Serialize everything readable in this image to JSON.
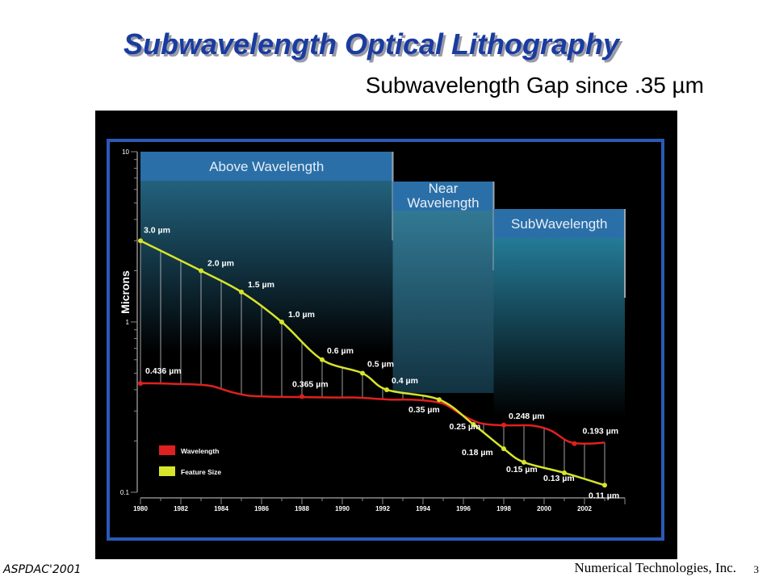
{
  "slide": {
    "title": "Subwavelength Optical Lithography",
    "subtitle": "Subwavelength Gap since .35 µm",
    "footer_left": "ASPDAC'2001",
    "footer_right": "Numerical Technologies, Inc.",
    "page_number": "3"
  },
  "chart_data": {
    "type": "line",
    "ylabel": "Microns",
    "yscale": "log",
    "ylim": [
      0.1,
      10
    ],
    "xlim": [
      1980,
      2004
    ],
    "y_tick_labels": [
      "10",
      "1",
      "0.1"
    ],
    "x_ticks": [
      "1980",
      "1982",
      "1984",
      "1986",
      "1988",
      "1990",
      "1992",
      "1994",
      "1996",
      "1998",
      "2000",
      "2002"
    ],
    "regions": [
      {
        "label": "Above Wavelength",
        "x_start": 1980,
        "x_end": 1992.5
      },
      {
        "label": "Near\nWavelength",
        "x_start": 1992.5,
        "x_end": 1997.5
      },
      {
        "label": "SubWavelength",
        "x_start": 1997.5,
        "x_end": 2004
      }
    ],
    "legend": {
      "position": "bottom-left",
      "entries": [
        "Wavelength",
        "Feature Size"
      ]
    },
    "series": [
      {
        "name": "Wavelength",
        "color": "#e02020",
        "points": [
          {
            "x": 1980,
            "y": 0.436,
            "label": "0.436 µm"
          },
          {
            "x": 1988,
            "y": 0.365,
            "label": "0.365 µm"
          },
          {
            "x": 1994.8,
            "y": 0.35,
            "label": ""
          },
          {
            "x": 1998,
            "y": 0.248,
            "label": "0.248 µm"
          },
          {
            "x": 2001.5,
            "y": 0.193,
            "label": "0.193 µm"
          }
        ],
        "curve_y": [
          0.436,
          0.436,
          0.433,
          0.43,
          0.42,
          0.39,
          0.37,
          0.365,
          0.363,
          0.362,
          0.361,
          0.36,
          0.36,
          0.355,
          0.35,
          0.35,
          0.345,
          0.33,
          0.285,
          0.255,
          0.248,
          0.247,
          0.246,
          0.23,
          0.198,
          0.193,
          0.196
        ]
      },
      {
        "name": "Feature Size",
        "color": "#d6e52a",
        "points": [
          {
            "x": 1980,
            "y": 3.0,
            "label": "3.0 µm"
          },
          {
            "x": 1983,
            "y": 2.0,
            "label": "2.0 µm"
          },
          {
            "x": 1985,
            "y": 1.5,
            "label": "1.5 µm"
          },
          {
            "x": 1987,
            "y": 1.0,
            "label": "1.0 µm"
          },
          {
            "x": 1989,
            "y": 0.6,
            "label": "0.6 µm"
          },
          {
            "x": 1991,
            "y": 0.5,
            "label": "0.5 µm"
          },
          {
            "x": 1992.2,
            "y": 0.4,
            "label": "0.4 µm"
          },
          {
            "x": 1994.8,
            "y": 0.35,
            "label": "0.35 µm"
          },
          {
            "x": 1996.5,
            "y": 0.25,
            "label": "0.25 µm"
          },
          {
            "x": 1998,
            "y": 0.18,
            "label": "0.18 µm"
          },
          {
            "x": 1999,
            "y": 0.15,
            "label": "0.15 µm"
          },
          {
            "x": 2001,
            "y": 0.13,
            "label": "0.13 µm"
          },
          {
            "x": 2003,
            "y": 0.11,
            "label": "0.11 µm"
          }
        ]
      }
    ],
    "colors": {
      "frame": "#2a5ab8",
      "region_header": "#2a7fb8",
      "region_fill": "#2e8cb0",
      "text": "#ffffff"
    }
  }
}
